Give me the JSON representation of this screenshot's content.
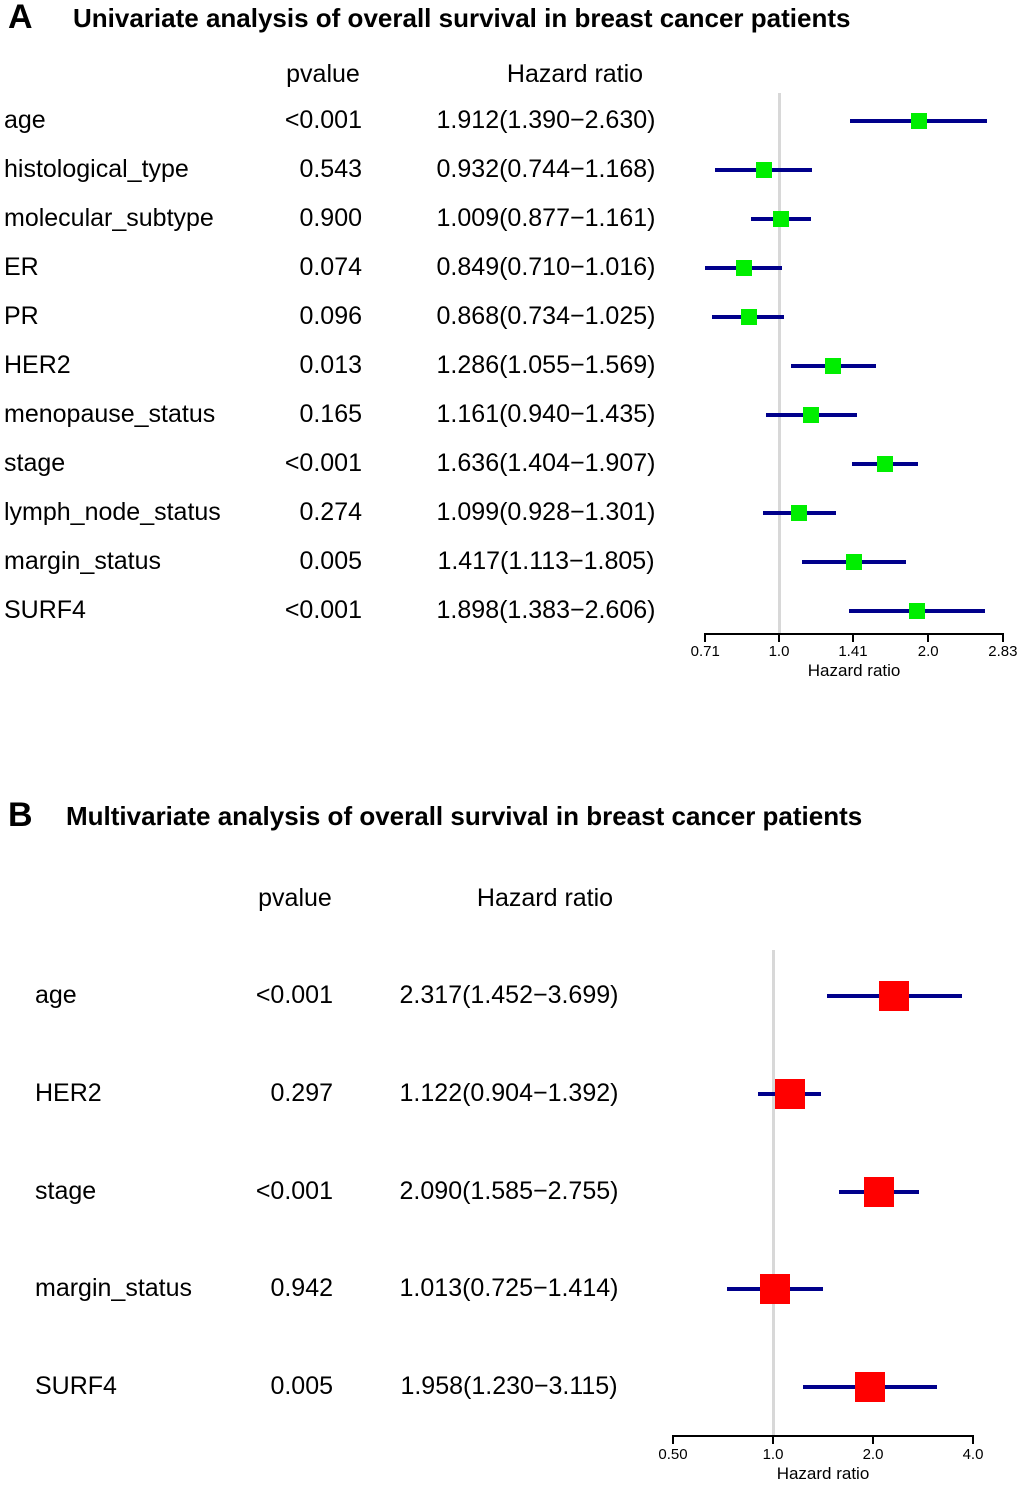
{
  "figure": {
    "background": "#ffffff",
    "text_color": "#000000"
  },
  "chart_data": [
    {
      "type": "scatter",
      "subtype": "forest-plot",
      "panel": "A",
      "title": "Univariate analysis of overall survival in breast cancer patients",
      "columns": {
        "variable": "",
        "pvalue": "pvalue",
        "hazard_ratio": "Hazard ratio"
      },
      "xlabel": "Hazard ratio",
      "xscale": "log2",
      "xlim": [
        0.71,
        2.83
      ],
      "axis_ticks": [
        {
          "v": 0.71,
          "label": "0.71"
        },
        {
          "v": 1.0,
          "label": "1.0"
        },
        {
          "v": 1.41,
          "label": "1.41"
        },
        {
          "v": 2.0,
          "label": "2.0"
        },
        {
          "v": 2.83,
          "label": "2.83"
        }
      ],
      "reference_value": 1.0,
      "marker_color": "#00EE00",
      "ci_color": "#00008B",
      "ref_line_color": "#D8D8D8",
      "axis_color": "#000000",
      "rows": [
        {
          "name": "age",
          "pvalue": "<0.001",
          "hr_text": "1.912(1.390−2.630)",
          "hr": 1.912,
          "ci_low": 1.39,
          "ci_high": 2.63
        },
        {
          "name": "histological_type",
          "pvalue": "0.543",
          "hr_text": "0.932(0.744−1.168)",
          "hr": 0.932,
          "ci_low": 0.744,
          "ci_high": 1.168
        },
        {
          "name": "molecular_subtype",
          "pvalue": "0.900",
          "hr_text": "1.009(0.877−1.161)",
          "hr": 1.009,
          "ci_low": 0.877,
          "ci_high": 1.161
        },
        {
          "name": "ER",
          "pvalue": "0.074",
          "hr_text": "0.849(0.710−1.016)",
          "hr": 0.849,
          "ci_low": 0.71,
          "ci_high": 1.016
        },
        {
          "name": "PR",
          "pvalue": "0.096",
          "hr_text": "0.868(0.734−1.025)",
          "hr": 0.868,
          "ci_low": 0.734,
          "ci_high": 1.025
        },
        {
          "name": "HER2",
          "pvalue": "0.013",
          "hr_text": "1.286(1.055−1.569)",
          "hr": 1.286,
          "ci_low": 1.055,
          "ci_high": 1.569
        },
        {
          "name": "menopause_status",
          "pvalue": "0.165",
          "hr_text": "1.161(0.940−1.435)",
          "hr": 1.161,
          "ci_low": 0.94,
          "ci_high": 1.435
        },
        {
          "name": "stage",
          "pvalue": "<0.001",
          "hr_text": "1.636(1.404−1.907)",
          "hr": 1.636,
          "ci_low": 1.404,
          "ci_high": 1.907
        },
        {
          "name": "lymph_node_status",
          "pvalue": "0.274",
          "hr_text": "1.099(0.928−1.301)",
          "hr": 1.099,
          "ci_low": 0.928,
          "ci_high": 1.301
        },
        {
          "name": "margin_status",
          "pvalue": "0.005",
          "hr_text": "1.417(1.113−1.805)",
          "hr": 1.417,
          "ci_low": 1.113,
          "ci_high": 1.805
        },
        {
          "name": "SURF4",
          "pvalue": "<0.001",
          "hr_text": "1.898(1.383−2.606)",
          "hr": 1.898,
          "ci_low": 1.383,
          "ci_high": 2.606
        }
      ]
    },
    {
      "type": "scatter",
      "subtype": "forest-plot",
      "panel": "B",
      "title": "Multivariate analysis of overall survival in breast cancer patients",
      "columns": {
        "variable": "",
        "pvalue": "pvalue",
        "hazard_ratio": "Hazard ratio"
      },
      "xlabel": "Hazard ratio",
      "xscale": "log2",
      "xlim": [
        0.5,
        4.0
      ],
      "axis_ticks": [
        {
          "v": 0.5,
          "label": "0.50"
        },
        {
          "v": 1.0,
          "label": "1.0"
        },
        {
          "v": 2.0,
          "label": "2.0"
        },
        {
          "v": 4.0,
          "label": "4.0"
        }
      ],
      "reference_value": 1.0,
      "marker_color": "#FF0000",
      "ci_color": "#00008B",
      "ref_line_color": "#D8D8D8",
      "axis_color": "#000000",
      "rows": [
        {
          "name": "age",
          "pvalue": "<0.001",
          "hr_text": "2.317(1.452−3.699)",
          "hr": 2.317,
          "ci_low": 1.452,
          "ci_high": 3.699
        },
        {
          "name": "HER2",
          "pvalue": "0.297",
          "hr_text": "1.122(0.904−1.392)",
          "hr": 1.122,
          "ci_low": 0.904,
          "ci_high": 1.392
        },
        {
          "name": "stage",
          "pvalue": "<0.001",
          "hr_text": "2.090(1.585−2.755)",
          "hr": 2.09,
          "ci_low": 1.585,
          "ci_high": 2.755
        },
        {
          "name": "margin_status",
          "pvalue": "0.942",
          "hr_text": "1.013(0.725−1.414)",
          "hr": 1.013,
          "ci_low": 0.725,
          "ci_high": 1.414
        },
        {
          "name": "SURF4",
          "pvalue": "0.005",
          "hr_text": "1.958(1.230−3.115)",
          "hr": 1.958,
          "ci_low": 1.23,
          "ci_high": 3.115
        }
      ]
    }
  ]
}
